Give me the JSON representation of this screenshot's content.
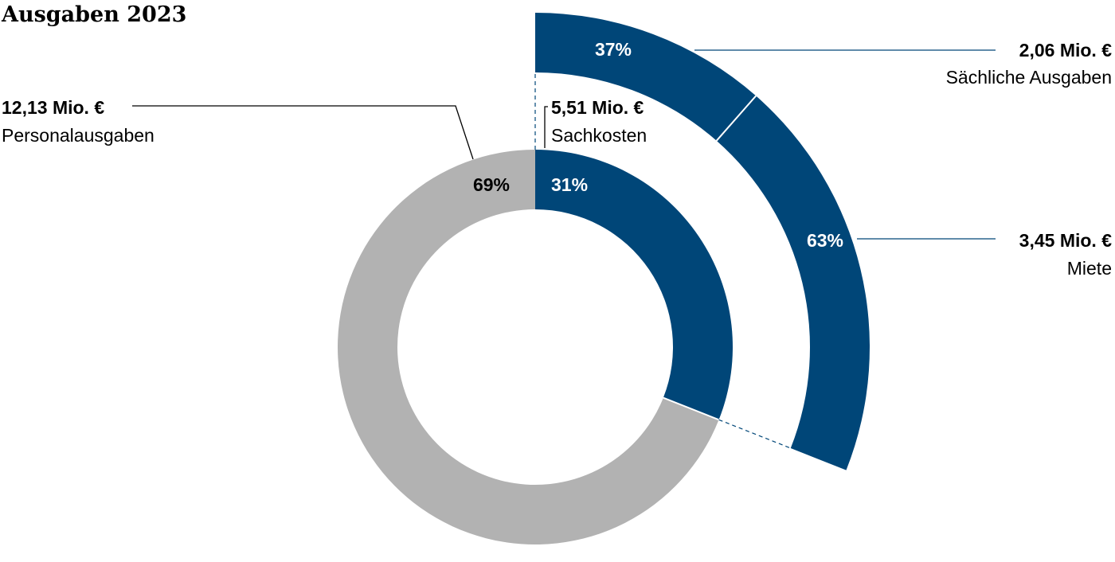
{
  "chart_data": {
    "type": "pie",
    "title": "Ausgaben 2023",
    "colors": {
      "personal": "#b2b2b2",
      "sach": "#004678",
      "leader": "#000000"
    },
    "inner_ring": [
      {
        "name": "Personalausgaben",
        "amount": "12,13 Mio. €",
        "percent": "69%",
        "share": 0.69
      },
      {
        "name": "Sachkosten",
        "amount": "5,51 Mio. €",
        "percent": "31%",
        "share": 0.31
      }
    ],
    "outer_ring": [
      {
        "name": "Sächliche Ausgaben",
        "amount": "2,06 Mio. €",
        "percent": "37%",
        "share": 0.37
      },
      {
        "name": "Miete",
        "amount": "3,45 Mio. €",
        "percent": "63%",
        "share": 0.63
      }
    ]
  }
}
